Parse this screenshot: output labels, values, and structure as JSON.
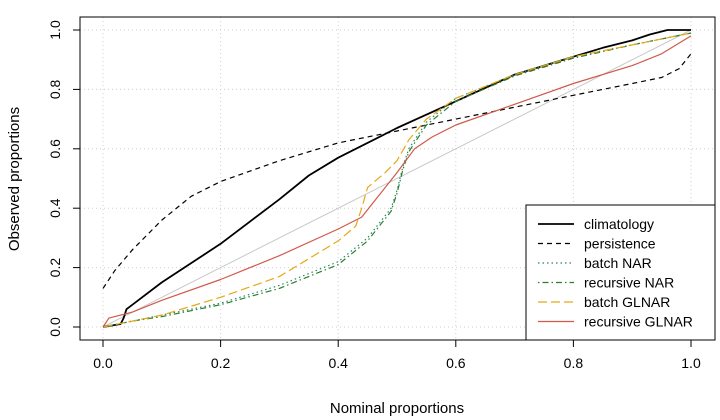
{
  "chart_data": {
    "type": "line",
    "title": "",
    "xlabel": "Nominal proportions",
    "ylabel": "Observed proportions",
    "xlim": [
      0,
      1
    ],
    "ylim": [
      0,
      1
    ],
    "x_ticks": [
      0.0,
      0.2,
      0.4,
      0.6,
      0.8,
      1.0
    ],
    "x_tick_labels": [
      "0.0",
      "0.2",
      "0.4",
      "0.6",
      "0.8",
      "1.0"
    ],
    "y_ticks": [
      0.0,
      0.2,
      0.4,
      0.6,
      0.8,
      1.0
    ],
    "y_tick_labels": [
      "0.0",
      "0.2",
      "0.4",
      "0.6",
      "0.8",
      "1.0"
    ],
    "grid": true,
    "legend_position": "bottom-right",
    "reference_line": {
      "name": "diagonal",
      "x": [
        0,
        1
      ],
      "y": [
        0,
        1
      ],
      "color": "#c8c8c8"
    },
    "series": [
      {
        "name": "climatology",
        "color": "#000000",
        "dash": "solid",
        "x": [
          0,
          0.03,
          0.035,
          0.04,
          0.1,
          0.2,
          0.3,
          0.35,
          0.4,
          0.5,
          0.6,
          0.7,
          0.8,
          0.85,
          0.9,
          0.93,
          0.96,
          1.0
        ],
        "y": [
          0,
          0.01,
          0.03,
          0.06,
          0.15,
          0.28,
          0.43,
          0.51,
          0.57,
          0.67,
          0.76,
          0.85,
          0.91,
          0.94,
          0.965,
          0.985,
          1.0,
          1.0
        ]
      },
      {
        "name": "persistence",
        "color": "#000000",
        "dash": "dashed",
        "x": [
          0,
          0.02,
          0.05,
          0.1,
          0.15,
          0.2,
          0.3,
          0.4,
          0.5,
          0.6,
          0.7,
          0.8,
          0.85,
          0.9,
          0.95,
          0.98,
          1.0
        ],
        "y": [
          0.13,
          0.19,
          0.26,
          0.36,
          0.44,
          0.49,
          0.56,
          0.62,
          0.66,
          0.7,
          0.74,
          0.78,
          0.8,
          0.82,
          0.84,
          0.87,
          0.92
        ]
      },
      {
        "name": "batch NAR",
        "color": "#1f8a5e",
        "dash": "dotted",
        "x": [
          0,
          0.05,
          0.1,
          0.2,
          0.3,
          0.4,
          0.45,
          0.49,
          0.5,
          0.51,
          0.52,
          0.55,
          0.6,
          0.7,
          0.8,
          0.9,
          1.0
        ],
        "y": [
          0,
          0.02,
          0.04,
          0.08,
          0.14,
          0.22,
          0.3,
          0.4,
          0.46,
          0.54,
          0.6,
          0.69,
          0.77,
          0.85,
          0.91,
          0.95,
          0.99
        ]
      },
      {
        "name": "recursive NAR",
        "color": "#2e7d32",
        "dash": "dotdash",
        "x": [
          0,
          0.05,
          0.1,
          0.2,
          0.3,
          0.4,
          0.45,
          0.49,
          0.5,
          0.51,
          0.52,
          0.55,
          0.6,
          0.7,
          0.8,
          0.9,
          1.0
        ],
        "y": [
          0,
          0.02,
          0.035,
          0.075,
          0.13,
          0.21,
          0.29,
          0.39,
          0.45,
          0.53,
          0.59,
          0.68,
          0.76,
          0.845,
          0.905,
          0.95,
          0.99
        ]
      },
      {
        "name": "batch GLNAR",
        "color": "#e6a817",
        "dash": "longdash",
        "x": [
          0,
          0.05,
          0.1,
          0.2,
          0.3,
          0.4,
          0.43,
          0.44,
          0.45,
          0.48,
          0.5,
          0.52,
          0.55,
          0.6,
          0.7,
          0.8,
          0.9,
          1.0
        ],
        "y": [
          0,
          0.02,
          0.04,
          0.1,
          0.17,
          0.29,
          0.34,
          0.4,
          0.47,
          0.52,
          0.56,
          0.63,
          0.7,
          0.77,
          0.85,
          0.91,
          0.95,
          0.99
        ]
      },
      {
        "name": "recursive GLNAR",
        "color": "#d05a4a",
        "dash": "solid",
        "x": [
          0,
          0.01,
          0.05,
          0.1,
          0.2,
          0.3,
          0.4,
          0.44,
          0.46,
          0.5,
          0.53,
          0.56,
          0.6,
          0.7,
          0.8,
          0.9,
          0.95,
          1.0
        ],
        "y": [
          0,
          0.03,
          0.05,
          0.09,
          0.16,
          0.24,
          0.33,
          0.37,
          0.42,
          0.52,
          0.6,
          0.64,
          0.68,
          0.75,
          0.82,
          0.88,
          0.92,
          0.98
        ]
      }
    ]
  }
}
